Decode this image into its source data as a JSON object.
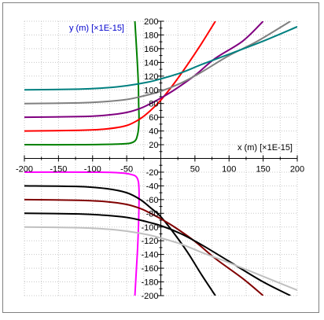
{
  "chart_data": {
    "type": "line",
    "x_axis": {
      "label": "x (m) [×1E-15]",
      "range": [
        -200,
        200
      ],
      "ticks": [
        -200,
        -150,
        -100,
        -50,
        50,
        100,
        150,
        200
      ],
      "label_color": "#000000"
    },
    "y_axis": {
      "label": "y (m) [×1E-15]",
      "range": [
        -200,
        200
      ],
      "ticks": [
        200,
        180,
        160,
        140,
        120,
        100,
        80,
        60,
        40,
        20,
        -20,
        -40,
        -60,
        -80,
        -100,
        -120,
        -140,
        -160,
        -180,
        -200
      ],
      "label_color": "#0000cc"
    },
    "grid": true,
    "series": [
      {
        "color": "#008000",
        "points": [
          [
            -200,
            20
          ],
          [
            -120,
            20
          ],
          [
            -60,
            21
          ],
          [
            -40,
            24
          ],
          [
            -34,
            35
          ],
          [
            -32,
            55
          ],
          [
            -32.5,
            80
          ],
          [
            -33,
            110
          ],
          [
            -35,
            150
          ],
          [
            -38,
            200
          ]
        ]
      },
      {
        "color": "#ff0000",
        "points": [
          [
            -200,
            40
          ],
          [
            -120,
            41
          ],
          [
            -80,
            43
          ],
          [
            -50,
            48
          ],
          [
            -30,
            58
          ],
          [
            -15,
            70
          ],
          [
            0,
            85
          ],
          [
            20,
            110
          ],
          [
            40,
            138
          ],
          [
            60,
            168
          ],
          [
            80,
            200
          ]
        ]
      },
      {
        "color": "#800080",
        "points": [
          [
            -200,
            60
          ],
          [
            -120,
            61
          ],
          [
            -80,
            63
          ],
          [
            -50,
            67
          ],
          [
            -30,
            73
          ],
          [
            -15,
            80
          ],
          [
            0,
            88
          ],
          [
            20,
            100
          ],
          [
            50,
            121
          ],
          [
            80,
            146
          ],
          [
            120,
            171
          ],
          [
            150,
            200
          ]
        ]
      },
      {
        "color": "#808080",
        "points": [
          [
            -200,
            80
          ],
          [
            -120,
            81
          ],
          [
            -80,
            83
          ],
          [
            -50,
            86
          ],
          [
            -30,
            90
          ],
          [
            0,
            98
          ],
          [
            30,
            110
          ],
          [
            60,
            126
          ],
          [
            100,
            150
          ],
          [
            140,
            170
          ],
          [
            190,
            200
          ]
        ]
      },
      {
        "color": "#008080",
        "points": [
          [
            -200,
            100
          ],
          [
            -120,
            101
          ],
          [
            -80,
            103
          ],
          [
            -50,
            106
          ],
          [
            -20,
            111
          ],
          [
            0,
            116
          ],
          [
            30,
            125
          ],
          [
            60,
            137
          ],
          [
            100,
            152
          ],
          [
            150,
            171
          ],
          [
            200,
            192
          ]
        ]
      },
      {
        "color": "#ff00ff",
        "points": [
          [
            -200,
            -20
          ],
          [
            -100,
            -20
          ],
          [
            -60,
            -21
          ],
          [
            -45,
            -23
          ],
          [
            -35,
            -28
          ],
          [
            -32,
            -45
          ],
          [
            -32.5,
            -90
          ],
          [
            -34,
            -130
          ],
          [
            -36,
            -165
          ],
          [
            -38,
            -200
          ]
        ]
      },
      {
        "color": "#000000",
        "points": [
          [
            -200,
            -40
          ],
          [
            -120,
            -41
          ],
          [
            -80,
            -44
          ],
          [
            -50,
            -50
          ],
          [
            -30,
            -60
          ],
          [
            -15,
            -72
          ],
          [
            0,
            -85
          ],
          [
            20,
            -110
          ],
          [
            40,
            -138
          ],
          [
            60,
            -170
          ],
          [
            80,
            -200
          ]
        ]
      },
      {
        "color": "#800000",
        "points": [
          [
            -200,
            -60
          ],
          [
            -120,
            -61
          ],
          [
            -80,
            -63
          ],
          [
            -50,
            -67
          ],
          [
            -30,
            -73
          ],
          [
            -15,
            -80
          ],
          [
            0,
            -88
          ],
          [
            20,
            -100
          ],
          [
            50,
            -121
          ],
          [
            80,
            -146
          ],
          [
            120,
            -175
          ],
          [
            150,
            -200
          ]
        ]
      },
      {
        "color": "#000000",
        "points": [
          [
            -200,
            -80
          ],
          [
            -120,
            -81
          ],
          [
            -80,
            -83
          ],
          [
            -50,
            -86
          ],
          [
            -30,
            -90
          ],
          [
            0,
            -98
          ],
          [
            30,
            -110
          ],
          [
            60,
            -126
          ],
          [
            100,
            -150
          ],
          [
            150,
            -180
          ],
          [
            190,
            -200
          ]
        ]
      },
      {
        "color": "#c0c0c0",
        "points": [
          [
            -200,
            -100
          ],
          [
            -120,
            -101
          ],
          [
            -80,
            -103
          ],
          [
            -50,
            -106
          ],
          [
            -20,
            -111
          ],
          [
            0,
            -116
          ],
          [
            30,
            -125
          ],
          [
            60,
            -137
          ],
          [
            100,
            -152
          ],
          [
            150,
            -172
          ],
          [
            200,
            -192
          ]
        ]
      }
    ]
  }
}
